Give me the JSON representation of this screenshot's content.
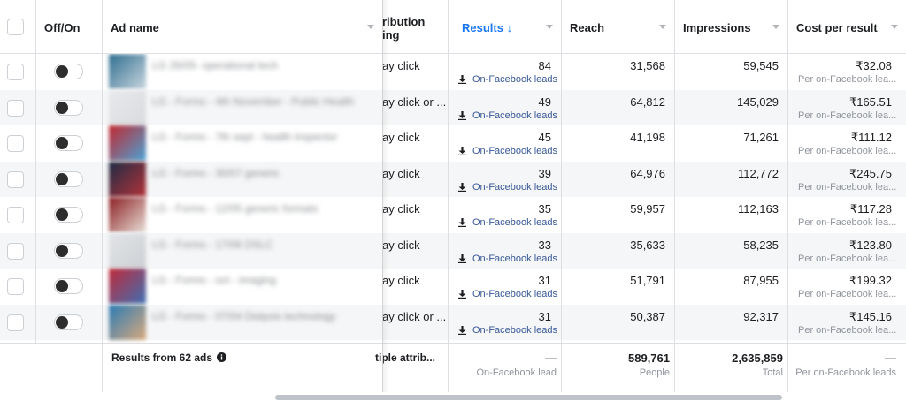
{
  "header": {
    "offon": "Off/On",
    "adname": "Ad name",
    "attribution_line1": "ribution",
    "attribution_line2": "ing",
    "results": "Results ↓",
    "reach": "Reach",
    "impressions": "Impressions",
    "cost": "Cost per result"
  },
  "rows": [
    {
      "ad_name": "LG 26/05- operational tech",
      "attribution": "ay click",
      "results": "84",
      "result_type": "On-Facebook leads",
      "reach": "31,568",
      "impressions": "59,545",
      "cost": "₹32.08",
      "cost_sub": "Per on-Facebook lea..."
    },
    {
      "ad_name": "LG - Forms - 4th November - Public Health",
      "attribution": "ay click or ...",
      "results": "49",
      "result_type": "On-Facebook leads",
      "reach": "64,812",
      "impressions": "145,029",
      "cost": "₹165.51",
      "cost_sub": "Per on-Facebook lea..."
    },
    {
      "ad_name": "LG - Forms - 7th sept - health inspector",
      "attribution": "ay click",
      "results": "45",
      "result_type": "On-Facebook leads",
      "reach": "41,198",
      "impressions": "71,261",
      "cost": "₹111.12",
      "cost_sub": "Per on-Facebook lea..."
    },
    {
      "ad_name": "LG - Forms - 30/07 generic",
      "attribution": "ay click",
      "results": "39",
      "result_type": "On-Facebook leads",
      "reach": "64,976",
      "impressions": "112,772",
      "cost": "₹245.75",
      "cost_sub": "Per on-Facebook lea..."
    },
    {
      "ad_name": "LG - Forms - 12/05 generic formats",
      "attribution": "ay click",
      "results": "35",
      "result_type": "On-Facebook leads",
      "reach": "59,957",
      "impressions": "112,163",
      "cost": "₹117.28",
      "cost_sub": "Per on-Facebook lea..."
    },
    {
      "ad_name": "LG - Forms - 17/06 DSLC",
      "attribution": "ay click",
      "results": "33",
      "result_type": "On-Facebook leads",
      "reach": "35,633",
      "impressions": "58,235",
      "cost": "₹123.80",
      "cost_sub": "Per on-Facebook lea..."
    },
    {
      "ad_name": "LG - Forms - oct - imaging",
      "attribution": "ay click",
      "results": "31",
      "result_type": "On-Facebook leads",
      "reach": "51,791",
      "impressions": "87,955",
      "cost": "₹199.32",
      "cost_sub": "Per on-Facebook lea..."
    },
    {
      "ad_name": "LG - Forms - 07/04 Dialysis technology",
      "attribution": "ay click or ...",
      "results": "31",
      "result_type": "On-Facebook leads",
      "reach": "50,387",
      "impressions": "92,317",
      "cost": "₹145.16",
      "cost_sub": "Per on-Facebook lea..."
    }
  ],
  "footer": {
    "label": "Results from 62 ads",
    "attribution": "tiple attrib...",
    "results": "—",
    "results_sub": "On-Facebook lead",
    "reach": "589,761",
    "reach_sub": "People",
    "impressions": "2,635,859",
    "impressions_sub": "Total",
    "cost": "—",
    "cost_sub": "Per on-Facebook leads"
  },
  "colors": {
    "link": "#385898",
    "sorted_header": "#1877f2",
    "row_alt": "#f5f6f7",
    "border": "#dddfe2"
  },
  "icons": {
    "download": "download-icon",
    "info": "info-icon",
    "sort": "sort-desc-icon"
  }
}
